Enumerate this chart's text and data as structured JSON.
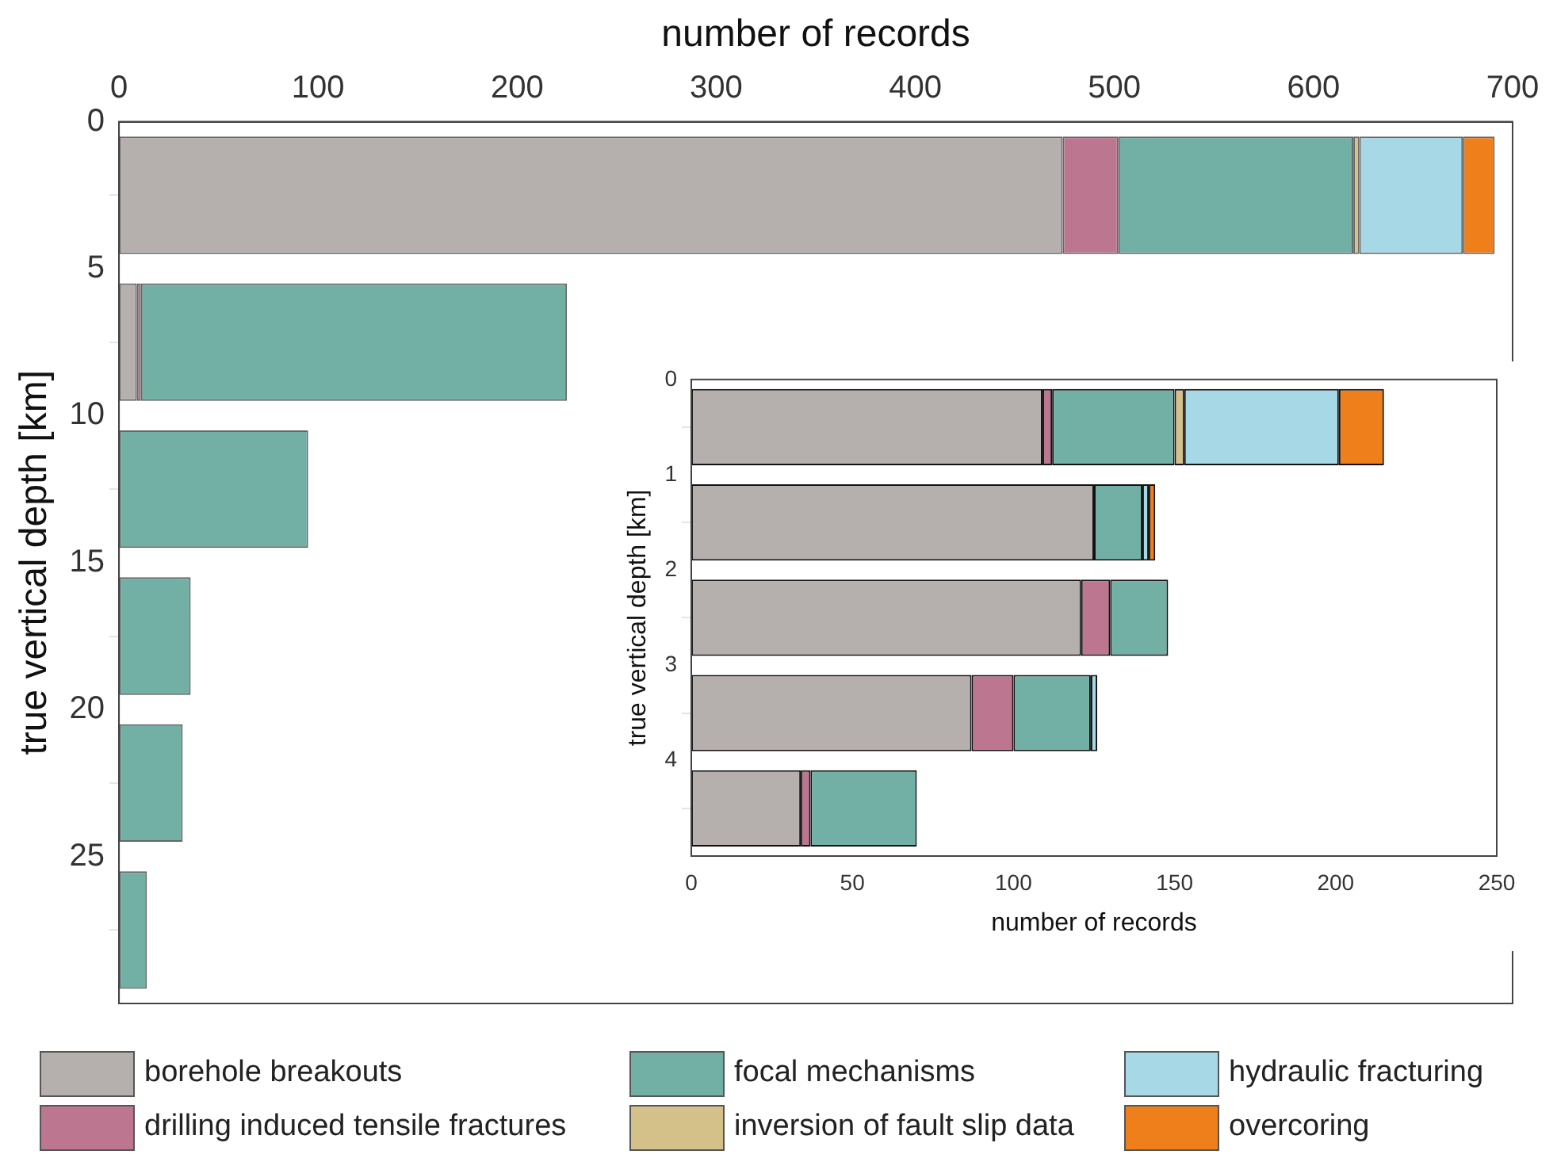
{
  "chart_data": [
    {
      "type": "bar",
      "orientation": "horizontal",
      "stacked": true,
      "xlabel": "number of records",
      "ylabel": "true vertical depth [km]",
      "x": [
        2.5,
        7.5,
        12.5,
        17.5,
        22.5,
        27.5
      ],
      "xlim": [
        0,
        700
      ],
      "xticks": [
        0,
        100,
        200,
        300,
        400,
        500,
        600,
        700
      ],
      "ylim": [
        30,
        0
      ],
      "yticks": [
        0,
        5,
        10,
        15,
        20,
        25
      ],
      "grid": false,
      "legend": "bottom",
      "series": [
        {
          "name": "borehole breakouts",
          "color": "#b5b0ad",
          "values": [
            474,
            9,
            null,
            null,
            null,
            null
          ]
        },
        {
          "name": "drilling induced tensile fractures",
          "color": "#bd7690",
          "values": [
            28,
            2,
            null,
            null,
            null,
            null
          ]
        },
        {
          "name": "focal mechanisms",
          "color": "#72b0a5",
          "values": [
            118,
            214,
            95,
            36,
            32,
            14
          ]
        },
        {
          "name": "inversion of fault slip data",
          "color": "#d4c089",
          "values": [
            3,
            null,
            null,
            null,
            null,
            null
          ]
        },
        {
          "name": "hydraulic fracturing",
          "color": "#a6d8e6",
          "values": [
            52,
            null,
            null,
            null,
            null,
            null
          ]
        },
        {
          "name": "overcoring",
          "color": "#ef7f1a",
          "values": [
            16,
            null,
            null,
            null,
            null,
            null
          ]
        }
      ]
    },
    {
      "type": "bar",
      "orientation": "horizontal",
      "stacked": true,
      "xlabel": "number of records",
      "ylabel": "true vertical depth [km]",
      "x": [
        0.5,
        1.5,
        2.5,
        3.5,
        4.5
      ],
      "xlim": [
        0,
        250
      ],
      "xticks": [
        0,
        50,
        100,
        150,
        200,
        250
      ],
      "ylim": [
        5,
        0
      ],
      "yticks": [
        0,
        1,
        2,
        3,
        4
      ],
      "grid": false,
      "series": [
        {
          "color": "#b5b0ad",
          "values": [
            109,
            125,
            121,
            87,
            34
          ]
        },
        {
          "color": "#bd7690",
          "values": [
            3,
            null,
            9,
            13,
            3
          ]
        },
        {
          "color": "#72b0a5",
          "values": [
            38,
            15,
            18,
            24,
            33
          ]
        },
        {
          "color": "#d4c089",
          "values": [
            3,
            null,
            null,
            null,
            null
          ]
        },
        {
          "color": "#a6d8e6",
          "values": [
            48,
            2,
            null,
            2,
            null
          ]
        },
        {
          "color": "#ef7f1a",
          "values": [
            14,
            2,
            null,
            null,
            null
          ]
        }
      ]
    }
  ]
}
